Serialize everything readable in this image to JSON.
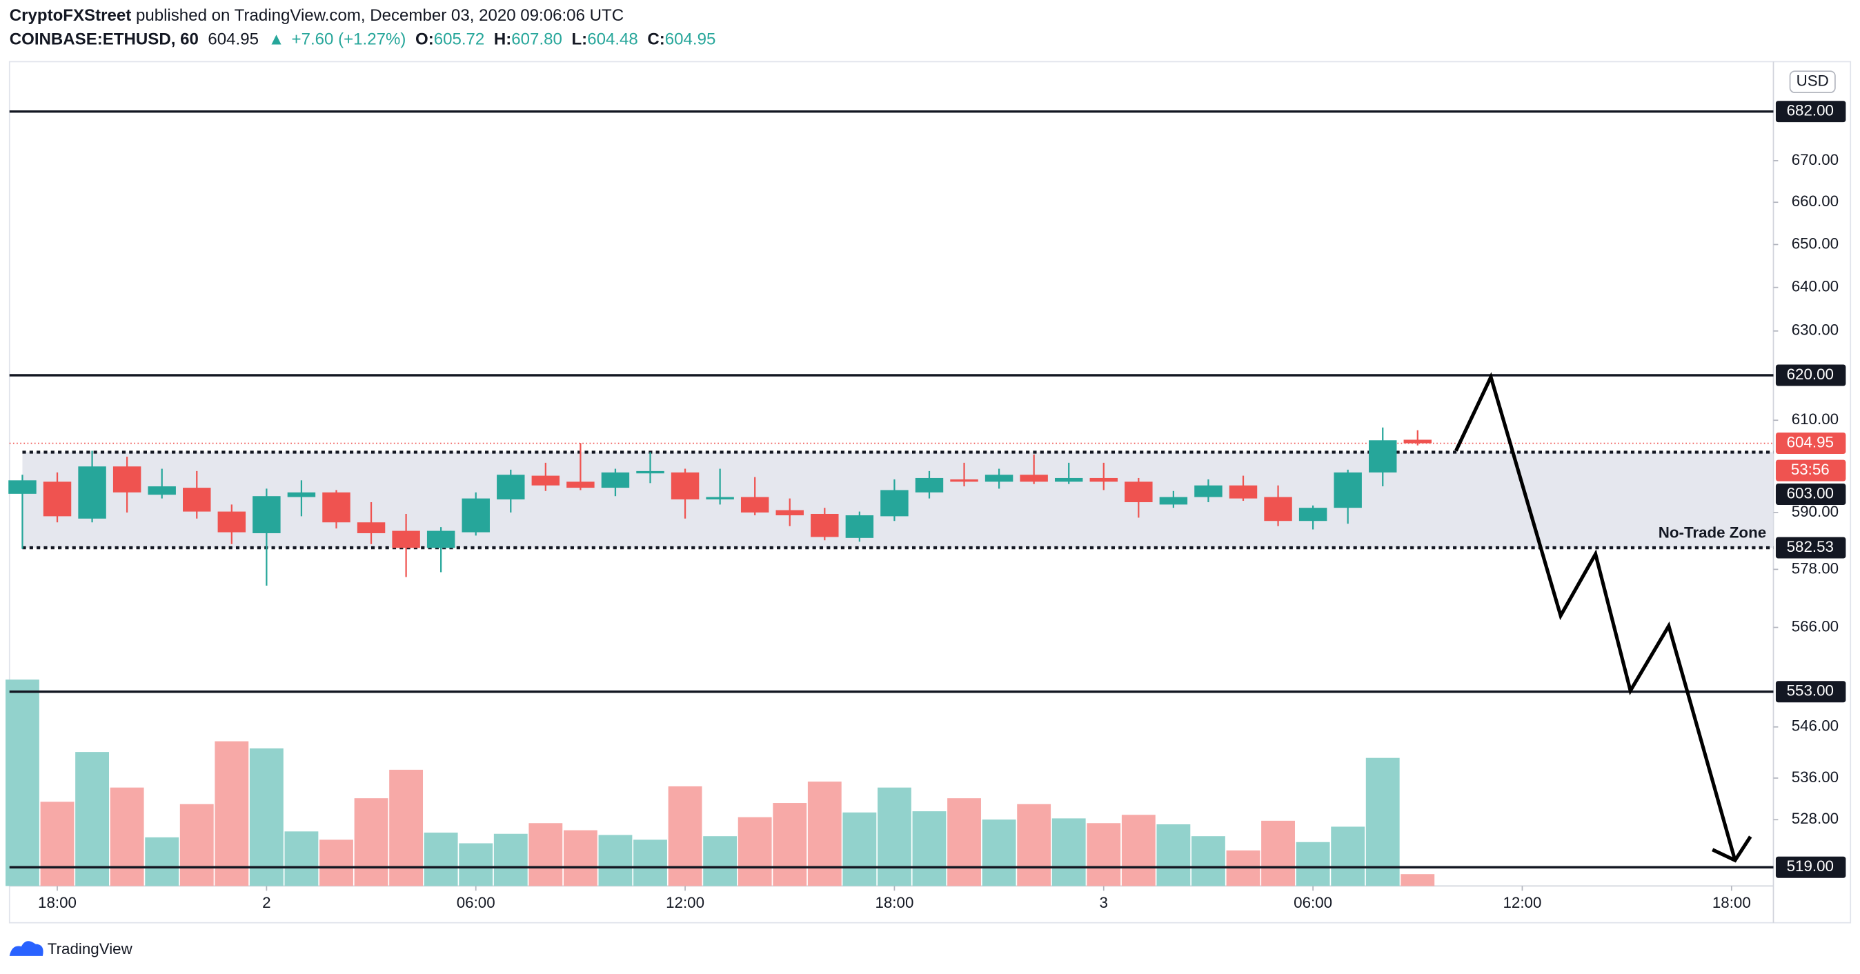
{
  "header": {
    "author": "CryptoFXStreet",
    "published": "published on TradingView.com, December 03, 2020 09:06:06 UTC",
    "symbol": "COINBASE:ETHUSD, 60",
    "last": "604.95",
    "change": "+7.60 (+1.27%)",
    "ohlc": [
      {
        "label": "O:",
        "value": "605.72"
      },
      {
        "label": "H:",
        "value": "607.80"
      },
      {
        "label": "L:",
        "value": "604.48"
      },
      {
        "label": "C:",
        "value": "604.95"
      }
    ]
  },
  "chart_data": {
    "type": "candlestick",
    "log_scale": true,
    "currency": "USD",
    "x": [
      0,
      1,
      2,
      3,
      4,
      5,
      6,
      7,
      8,
      9,
      10,
      11,
      12,
      13,
      14,
      15,
      16,
      17,
      18,
      19,
      20,
      21,
      22,
      23,
      24,
      25,
      26,
      27,
      28,
      29,
      30,
      31,
      32,
      33,
      34,
      35,
      36,
      37,
      38,
      39,
      40
    ],
    "open": [
      594.0,
      596.6,
      588.7,
      599.9,
      593.8,
      595.3,
      590.2,
      585.6,
      593.3,
      594.3,
      587.9,
      586.1,
      582.5,
      585.8,
      592.8,
      597.9,
      596.6,
      595.3,
      598.4,
      598.6,
      592.8,
      593.3,
      590.5,
      589.7,
      584.6,
      589.2,
      594.3,
      597.1,
      596.6,
      598.1,
      596.6,
      597.4,
      596.6,
      591.7,
      593.3,
      595.8,
      593.3,
      588.2,
      591.0,
      598.6,
      605.72
    ],
    "high": [
      598.1,
      598.6,
      603.3,
      602.0,
      599.4,
      598.9,
      591.7,
      595.1,
      596.9,
      594.8,
      592.2,
      589.7,
      586.9,
      594.3,
      599.2,
      600.7,
      605.0,
      599.4,
      603.0,
      599.4,
      599.4,
      597.6,
      593.0,
      591.0,
      590.2,
      597.1,
      598.9,
      600.7,
      599.4,
      602.5,
      600.7,
      600.7,
      597.4,
      594.6,
      597.1,
      597.9,
      595.8,
      591.5,
      599.2,
      608.4,
      607.8
    ],
    "low": [
      582.3,
      587.9,
      587.9,
      590.0,
      593.0,
      588.7,
      583.3,
      574.6,
      589.2,
      586.6,
      583.3,
      576.4,
      577.4,
      585.1,
      590.0,
      594.6,
      594.8,
      593.5,
      596.3,
      588.7,
      591.7,
      589.4,
      587.1,
      584.1,
      583.8,
      588.2,
      593.0,
      595.6,
      595.1,
      596.1,
      596.1,
      594.8,
      588.9,
      591.0,
      592.2,
      592.5,
      587.1,
      586.4,
      587.6,
      595.6,
      604.48
    ],
    "close": [
      596.9,
      589.2,
      599.9,
      594.3,
      595.6,
      590.2,
      585.8,
      593.5,
      594.3,
      587.9,
      585.6,
      582.5,
      586.1,
      593.0,
      598.1,
      595.8,
      595.3,
      598.6,
      598.9,
      592.8,
      593.3,
      590.0,
      589.4,
      584.8,
      589.4,
      594.8,
      597.4,
      596.6,
      598.1,
      596.6,
      597.4,
      596.6,
      592.2,
      593.3,
      595.8,
      593.0,
      588.2,
      591.0,
      598.6,
      605.6,
      604.95
    ],
    "volume": [
      174,
      71,
      113,
      83,
      41,
      69,
      122,
      116,
      46,
      39,
      74,
      98,
      45,
      36,
      44,
      53,
      47,
      43,
      39,
      84,
      42,
      58,
      70,
      88,
      62,
      83,
      63,
      74,
      56,
      69,
      57,
      53,
      60,
      52,
      42,
      30,
      55,
      37,
      50,
      108,
      10
    ],
    "up_color": "#26a69a",
    "down_color": "#ef5350",
    "volume_up_color": "#92d2cc",
    "volume_down_color": "#f7a9a7",
    "xlim": [
      -0.37,
      50.2
    ],
    "ylim": [
      515.5,
      694.4
    ],
    "xticks": [
      {
        "value": 1,
        "label": "18:00"
      },
      {
        "value": 7,
        "label": "2"
      },
      {
        "value": 13,
        "label": "06:00"
      },
      {
        "value": 19,
        "label": "12:00"
      },
      {
        "value": 25,
        "label": "18:00"
      },
      {
        "value": 31,
        "label": "3"
      },
      {
        "value": 37,
        "label": "06:00"
      },
      {
        "value": 43,
        "label": "12:00"
      },
      {
        "value": 49,
        "label": "18:00"
      }
    ],
    "yticks": [
      {
        "value": 670,
        "label": "670.00"
      },
      {
        "value": 660,
        "label": "660.00"
      },
      {
        "value": 650,
        "label": "650.00"
      },
      {
        "value": 640,
        "label": "640.00"
      },
      {
        "value": 630,
        "label": "630.00"
      },
      {
        "value": 610,
        "label": "610.00"
      },
      {
        "value": 590,
        "label": "590.00"
      },
      {
        "value": 578,
        "label": "578.00"
      },
      {
        "value": 566,
        "label": "566.00"
      },
      {
        "value": 546,
        "label": "546.00"
      },
      {
        "value": 536,
        "label": "536.00"
      },
      {
        "value": 528,
        "label": "528.00"
      }
    ],
    "levels": [
      {
        "value": 682,
        "label": "682.00"
      },
      {
        "value": 620,
        "label": "620.00"
      },
      {
        "value": 553,
        "label": "553.00"
      },
      {
        "value": 519,
        "label": "519.00"
      }
    ],
    "zone": {
      "top": {
        "value": 603,
        "label": "603.00"
      },
      "bottom": {
        "value": 582.53,
        "label": "582.53"
      },
      "label": "No-Trade Zone"
    },
    "last_price": {
      "value": 604.95,
      "label": "604.95"
    },
    "countdown": "53:56",
    "projection": {
      "x": [
        41.1,
        42.1,
        44.1,
        45.1,
        46.1,
        47.2,
        49.1
      ],
      "y": [
        603.3,
        619.6,
        568.4,
        581.2,
        553.2,
        566.3,
        520.3
      ]
    }
  },
  "footer": {
    "brand": "TradingView"
  }
}
